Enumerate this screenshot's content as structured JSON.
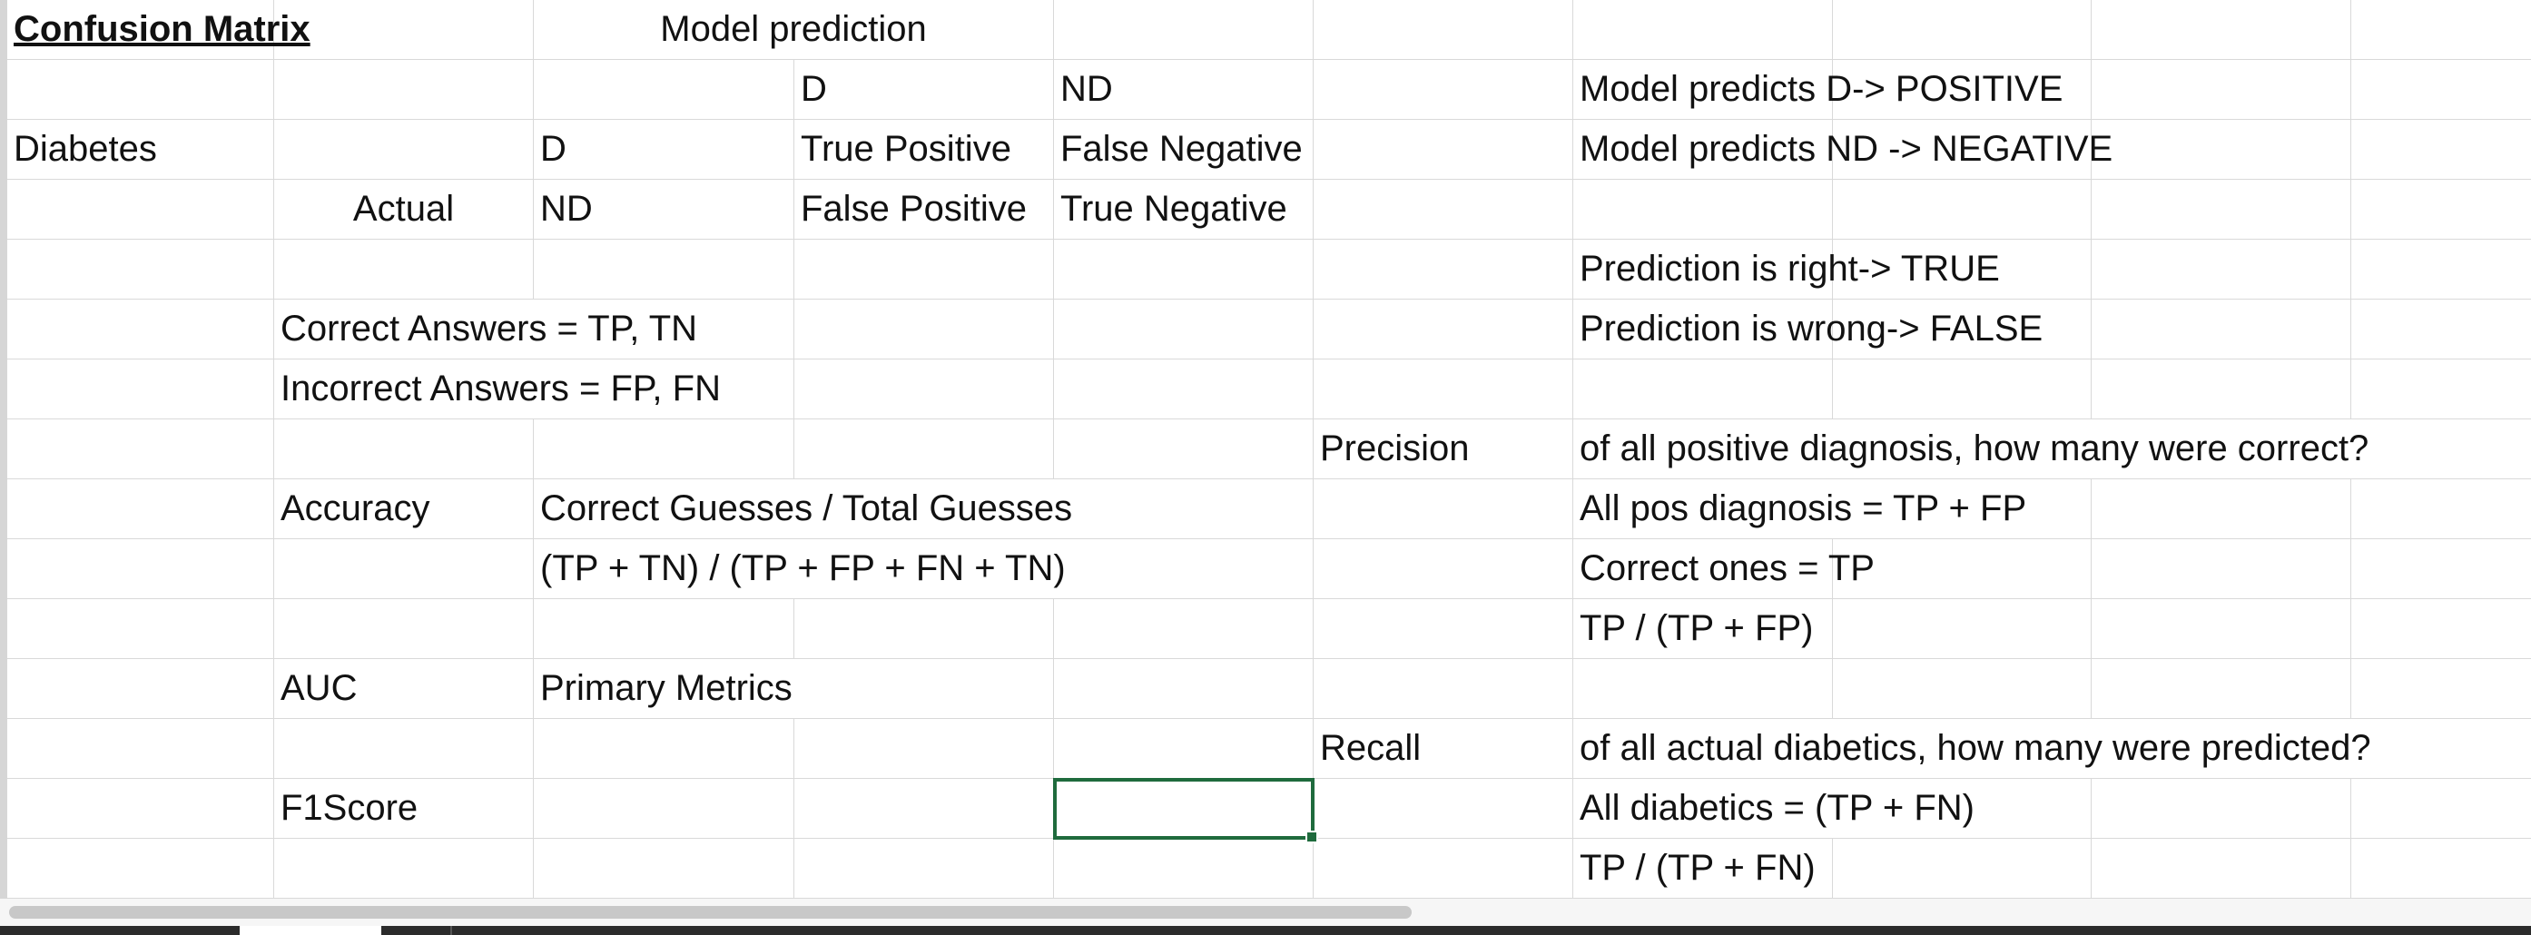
{
  "sheet": {
    "cells": {
      "title": "Confusion Matrix",
      "model_prediction_header": "Model prediction",
      "pred_d": "D",
      "pred_nd": "ND",
      "note_predicts_d": "Model predicts D-> POSITIVE",
      "diabetes_label": "Diabetes",
      "actual_d": "D",
      "true_positive": "True Positive",
      "false_negative": "False Negative",
      "note_predicts_nd": "Model predicts ND -> NEGATIVE",
      "actual_label": "Actual",
      "actual_nd": "ND",
      "false_positive": "False Positive",
      "true_negative": "True Negative",
      "note_right": "Prediction is right-> TRUE",
      "correct_answers": "Correct Answers = TP, TN",
      "note_wrong": "Prediction is wrong-> FALSE",
      "incorrect_answers": "Incorrect Answers = FP, FN",
      "precision_label": "Precision",
      "precision_question": "of all positive diagnosis, how many were correct?",
      "accuracy_label": "Accuracy",
      "accuracy_def": "Correct Guesses / Total Guesses",
      "all_pos_diagnosis": "All pos diagnosis = TP + FP",
      "accuracy_formula": "(TP + TN) / (TP + FP + FN + TN)",
      "correct_ones": "Correct ones = TP",
      "precision_formula": "TP / (TP + FP)",
      "auc_label": "AUC",
      "primary_metrics": "Primary Metrics",
      "recall_label": "Recall",
      "recall_question": "of all actual diabetics, how many were predicted?",
      "f1score_label": "F1Score",
      "all_diabetics": "All diabetics = (TP + FN)",
      "recall_formula": "TP / (TP + FN)"
    }
  },
  "colors": {
    "selection_border": "#1f6b3d",
    "gridline": "#d9d9d9",
    "scroll_thumb": "#c8c8c8"
  }
}
